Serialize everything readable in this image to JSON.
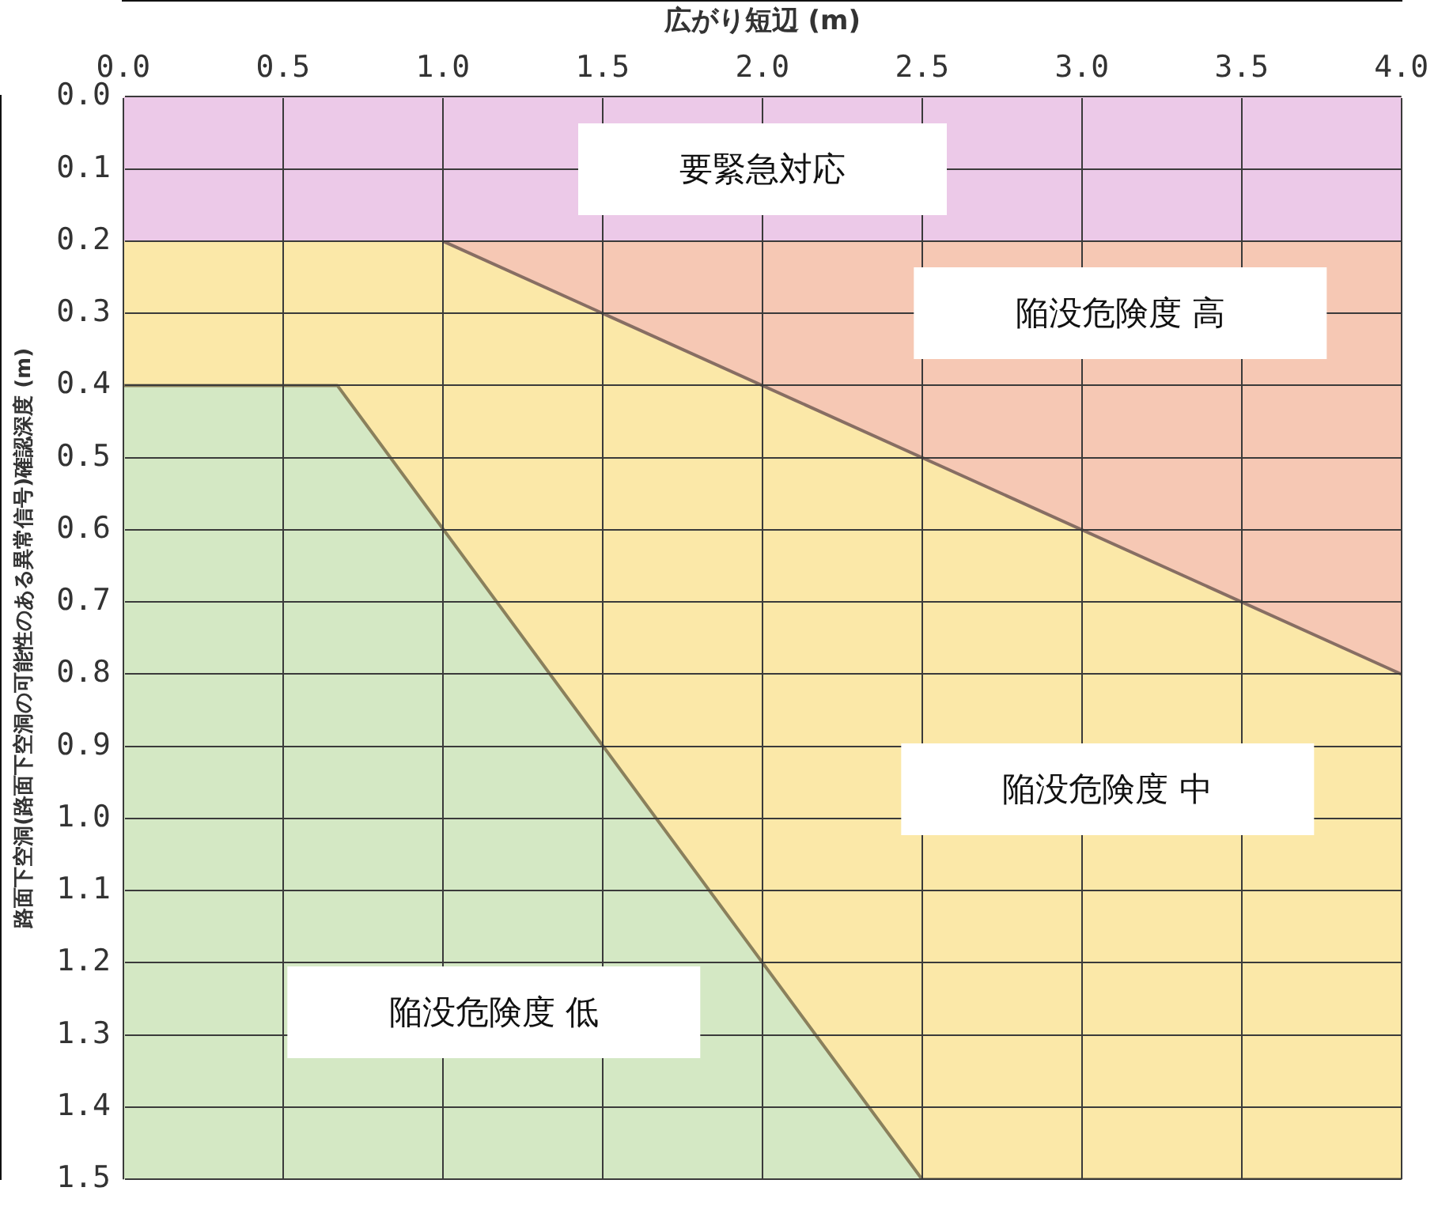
{
  "chart_data": {
    "type": "area",
    "xlabel": "広がり短辺 (m)",
    "ylabel": "路面下空洞(路面下空洞の可能性のある異常信号)確認深度 (m)",
    "xlim": [
      0,
      4
    ],
    "xticks": [
      {
        "value": 0,
        "label": "0.0"
      },
      0.5,
      {
        "value": 1,
        "label": "1.0"
      },
      1.5,
      {
        "value": 2,
        "label": "2.0"
      },
      2.5,
      {
        "value": 3,
        "label": "3.0"
      },
      3.5,
      {
        "value": 4,
        "label": "4.0"
      }
    ],
    "ylim": [
      1.5,
      0
    ],
    "yticks": [
      {
        "value": 0,
        "label": "0.0"
      },
      0.1,
      0.2,
      0.3,
      0.4,
      0.5,
      0.6,
      0.7,
      0.8,
      0.9,
      {
        "value": 1,
        "label": "1.0"
      },
      1.1,
      1.2,
      1.3,
      1.4,
      1.5
    ],
    "grid": true,
    "series": [
      {
        "color": "#fbe8a8",
        "x": [
          0,
          0.67,
          2.5,
          4
        ],
        "values": [
          0.4,
          0.4,
          1.5,
          1.5
        ]
      },
      {
        "color": "#f6c8b4",
        "x": [
          1,
          4
        ],
        "values": [
          0.2,
          0.8
        ]
      }
    ],
    "bands": [
      {
        "axis": "y",
        "from": 0,
        "to": 0.2,
        "label": "要緊急対応",
        "color": "#ecc9e8"
      },
      {
        "axis": "y",
        "from": 0.4,
        "to": 1.5,
        "color": "#d4e8c4"
      }
    ],
    "annotations": [
      "陥没危険度 高",
      "陥没危険度 中",
      "陥没危険度 低"
    ]
  }
}
